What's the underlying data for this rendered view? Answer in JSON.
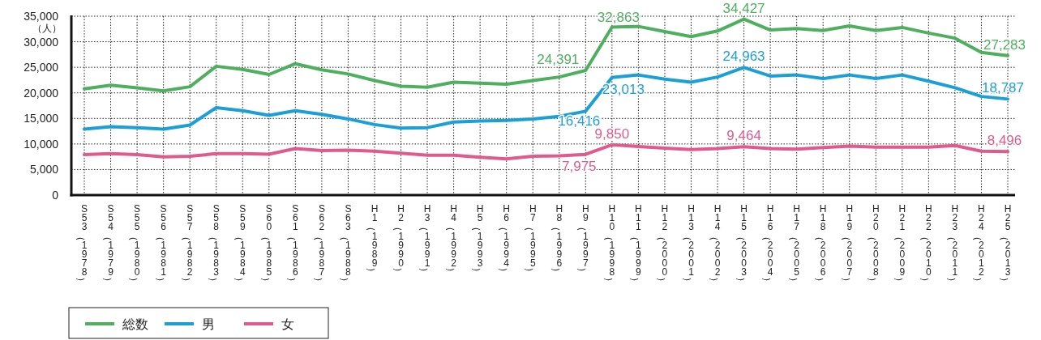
{
  "chart_data": {
    "type": "line",
    "ylabel": "（人）",
    "categories": [
      "S53（1978）",
      "S54（1979）",
      "S55（1980）",
      "S56（1981）",
      "S57（1982）",
      "S58（1983）",
      "S59（1984）",
      "S60（1985）",
      "S61（1986）",
      "S62（1987）",
      "S63（1988）",
      "H1（1989）",
      "H2（1990）",
      "H3（1991）",
      "H4（1992）",
      "H5（1993）",
      "H6（1994）",
      "H7（1995）",
      "H8（1996）",
      "H9（1997）",
      "H10（1998）",
      "H11（1999）",
      "H12（2000）",
      "H13（2001）",
      "H14（2002）",
      "H15（2003）",
      "H16（2004）",
      "H17（2005）",
      "H18（2006）",
      "H19（2007）",
      "H20（2008）",
      "H21（2009）",
      "H22（2010）",
      "H23（2011）",
      "H24（2012）",
      "H25（2013）"
    ],
    "series": [
      {
        "name": "総数",
        "color": "#4eaf5e",
        "values": [
          20800,
          21500,
          21000,
          20400,
          21200,
          25200,
          24600,
          23600,
          25700,
          24500,
          23700,
          22400,
          21300,
          21100,
          22100,
          21900,
          21700,
          22400,
          23100,
          24391,
          32863,
          33000,
          32000,
          31000,
          32100,
          34427,
          32300,
          32600,
          32200,
          33100,
          32200,
          32800,
          31700,
          30700,
          27900,
          27283
        ],
        "value_labels": [
          null,
          null,
          null,
          null,
          null,
          null,
          null,
          null,
          null,
          null,
          null,
          null,
          null,
          null,
          null,
          null,
          null,
          null,
          null,
          "24,391",
          "32,863",
          null,
          null,
          null,
          null,
          "34,427",
          null,
          null,
          null,
          null,
          null,
          null,
          null,
          null,
          null,
          "27,283"
        ]
      },
      {
        "name": "男",
        "color": "#1a9fd6",
        "values": [
          12900,
          13400,
          13200,
          12900,
          13700,
          17100,
          16500,
          15600,
          16500,
          15800,
          14900,
          13800,
          13100,
          13200,
          14300,
          14500,
          14600,
          14900,
          15400,
          16416,
          23013,
          23500,
          22700,
          22100,
          23100,
          24963,
          23300,
          23500,
          22800,
          23500,
          22800,
          23500,
          22300,
          21000,
          19300,
          18787
        ],
        "value_labels": [
          null,
          null,
          null,
          null,
          null,
          null,
          null,
          null,
          null,
          null,
          null,
          null,
          null,
          null,
          null,
          null,
          null,
          null,
          null,
          "16,416",
          "23,013",
          null,
          null,
          null,
          null,
          "24,963",
          null,
          null,
          null,
          null,
          null,
          null,
          null,
          null,
          null,
          "18,787"
        ]
      },
      {
        "name": "女",
        "color": "#e05a8b",
        "values": [
          7900,
          8100,
          7900,
          7500,
          7600,
          8100,
          8100,
          8000,
          9100,
          8700,
          8800,
          8600,
          8200,
          7800,
          7800,
          7400,
          7100,
          7600,
          7700,
          7975,
          9850,
          9500,
          9200,
          8900,
          9100,
          9464,
          9100,
          9000,
          9300,
          9600,
          9400,
          9400,
          9400,
          9700,
          8600,
          8496
        ],
        "value_labels": [
          null,
          null,
          null,
          null,
          null,
          null,
          null,
          null,
          null,
          null,
          null,
          null,
          null,
          null,
          null,
          null,
          null,
          null,
          null,
          "7,975",
          "9,850",
          null,
          null,
          null,
          null,
          "9,464",
          null,
          null,
          null,
          null,
          null,
          null,
          null,
          null,
          null,
          "8,496"
        ]
      }
    ],
    "ylim": [
      0,
      35000
    ],
    "yticks": [
      {
        "value": 0,
        "label": "0"
      },
      {
        "value": 5000,
        "label": "5,000"
      },
      {
        "value": 10000,
        "label": "10,000"
      },
      {
        "value": 15000,
        "label": "15,000"
      },
      {
        "value": 20000,
        "label": "20,000"
      },
      {
        "value": 25000,
        "label": "25,000"
      },
      {
        "value": 30000,
        "label": "30,000"
      },
      {
        "value": 35000,
        "label": "35,000"
      }
    ],
    "grid": true,
    "legend": "bottom left",
    "marker": "none",
    "line_style": "solid"
  }
}
